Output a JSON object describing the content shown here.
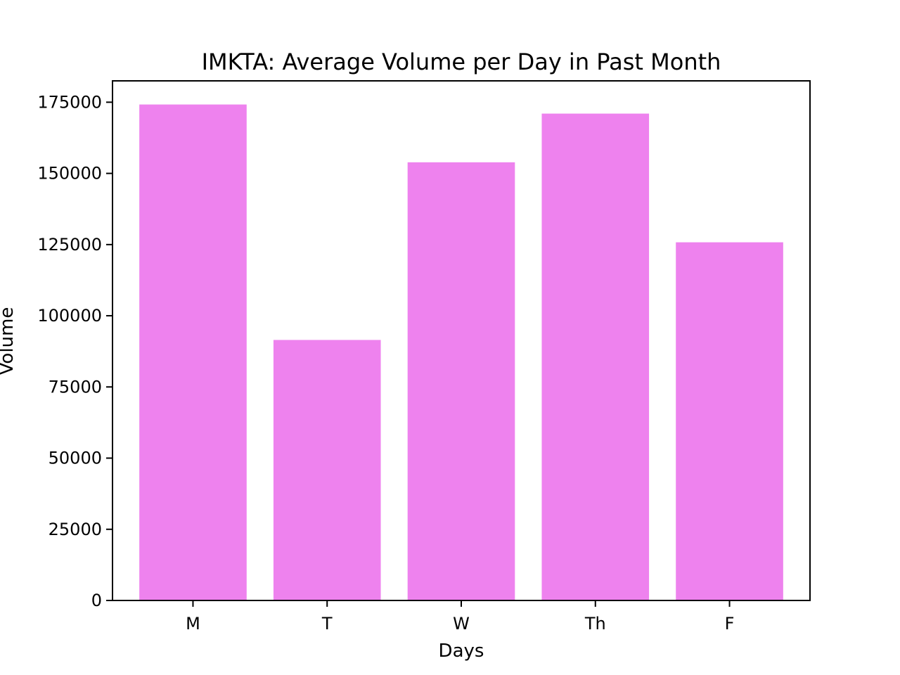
{
  "chart_data": {
    "type": "bar",
    "title": "IMKTA: Average Volume per Day in Past Month",
    "xlabel": "Days",
    "ylabel": "Volume",
    "categories": [
      "M",
      "T",
      "W",
      "Th",
      "F"
    ],
    "values": [
      174200,
      91500,
      153900,
      171000,
      125800
    ],
    "ylim": [
      0,
      182500
    ],
    "yticks": [
      0,
      25000,
      50000,
      75000,
      100000,
      125000,
      150000,
      175000
    ],
    "ytick_labels": [
      "0",
      "25000",
      "50000",
      "75000",
      "100000",
      "125000",
      "150000",
      "175000"
    ],
    "bar_color": "#ee82ee",
    "grid": false,
    "legend": false
  }
}
